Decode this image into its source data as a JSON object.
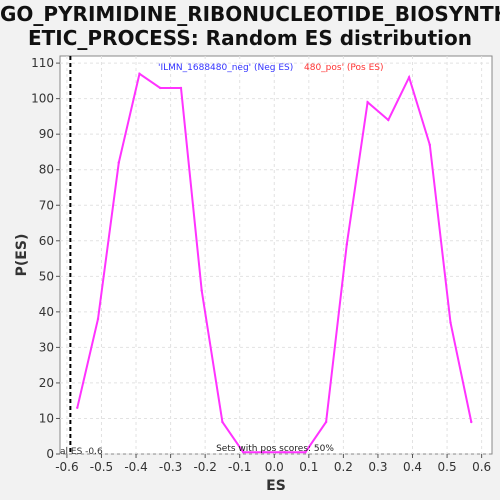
{
  "title_line1": "GO_PYRIMIDINE_RIBONUCLEOTIDE_BIOSYNTH",
  "title_line2": "ETIC_PROCESS: Random ES distribution",
  "chart_data": {
    "type": "line",
    "title": "GO_PYRIMIDINE_RIBONUCLEOTIDE_BIOSYNTHETIC_PROCESS: Random ES distribution",
    "xlabel": "ES",
    "ylabel": "P(ES)",
    "xlim": [
      -0.62,
      0.63
    ],
    "ylim": [
      0,
      112
    ],
    "xticks": [
      -0.6,
      -0.5,
      -0.4,
      -0.3,
      -0.2,
      -0.1,
      0.0,
      0.1,
      0.2,
      0.3,
      0.4,
      0.5,
      0.6
    ],
    "yticks": [
      0,
      10,
      20,
      30,
      40,
      50,
      60,
      70,
      80,
      90,
      100,
      110
    ],
    "grid": true,
    "series": [
      {
        "color": "#ff33ff",
        "x": [
          -0.57,
          -0.51,
          -0.45,
          -0.39,
          -0.33,
          -0.27,
          -0.21,
          -0.15,
          -0.09,
          -0.03,
          0.03,
          0.09,
          0.15,
          0.21,
          0.27,
          0.33,
          0.39,
          0.45,
          0.51,
          0.57
        ],
        "y": [
          13,
          38,
          82,
          107,
          103,
          103,
          46,
          9,
          0.5,
          0.5,
          0.5,
          0.5,
          9,
          59,
          99,
          94,
          106,
          87,
          37,
          9
        ]
      }
    ],
    "vline": {
      "x": -0.59,
      "label": "al ES -0.6",
      "color": "#000000"
    },
    "legend_neg": "'ILMN_1688480_neg' (Neg ES)",
    "legend_pos": "480_pos' (Pos ES)",
    "legend_neg_color": "#3333ff",
    "legend_pos_color": "#ff3333",
    "footer": "Sets with pos scores: 50%"
  }
}
